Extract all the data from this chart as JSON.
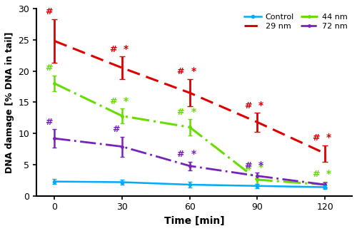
{
  "x": [
    0,
    30,
    60,
    90,
    120
  ],
  "control": {
    "y": [
      2.3,
      2.2,
      1.8,
      1.6,
      1.4
    ],
    "yerr": [
      0.4,
      0.35,
      0.5,
      0.35,
      0.25
    ]
  },
  "nm29": {
    "y": [
      24.8,
      20.5,
      16.5,
      11.8,
      6.8
    ],
    "yerr": [
      3.5,
      1.8,
      2.2,
      1.5,
      1.3
    ]
  },
  "nm44": {
    "y": [
      18.0,
      12.8,
      11.0,
      2.6,
      1.8
    ],
    "yerr": [
      1.3,
      1.2,
      1.3,
      0.7,
      0.5
    ]
  },
  "nm72": {
    "y": [
      9.2,
      7.9,
      4.8,
      3.2,
      1.8
    ],
    "yerr": [
      1.5,
      1.6,
      0.7,
      0.5,
      0.4
    ]
  },
  "colors": {
    "control": "#00aaff",
    "nm29": "#dd0000",
    "nm44": "#66dd00",
    "nm72": "#7722bb"
  },
  "ylabel": "DNA damage [% DNA in tail]",
  "xlabel": "Time [min]",
  "ylim": [
    0,
    30
  ],
  "yticks": [
    0,
    5,
    10,
    15,
    20,
    25,
    30
  ],
  "xticks": [
    0,
    30,
    60,
    90,
    120
  ],
  "annotations_hash": {
    "nm29": [
      true,
      true,
      true,
      true,
      true
    ],
    "nm44": [
      true,
      true,
      true,
      true,
      true
    ],
    "nm72": [
      true,
      true,
      true,
      true,
      false
    ],
    "control": [
      false,
      false,
      false,
      false,
      false
    ]
  },
  "annotations_star": {
    "nm29": [
      false,
      true,
      true,
      true,
      true
    ],
    "nm44": [
      false,
      true,
      true,
      true,
      true
    ],
    "nm72": [
      false,
      false,
      true,
      true,
      true
    ],
    "control": [
      false,
      false,
      false,
      false,
      false
    ]
  }
}
